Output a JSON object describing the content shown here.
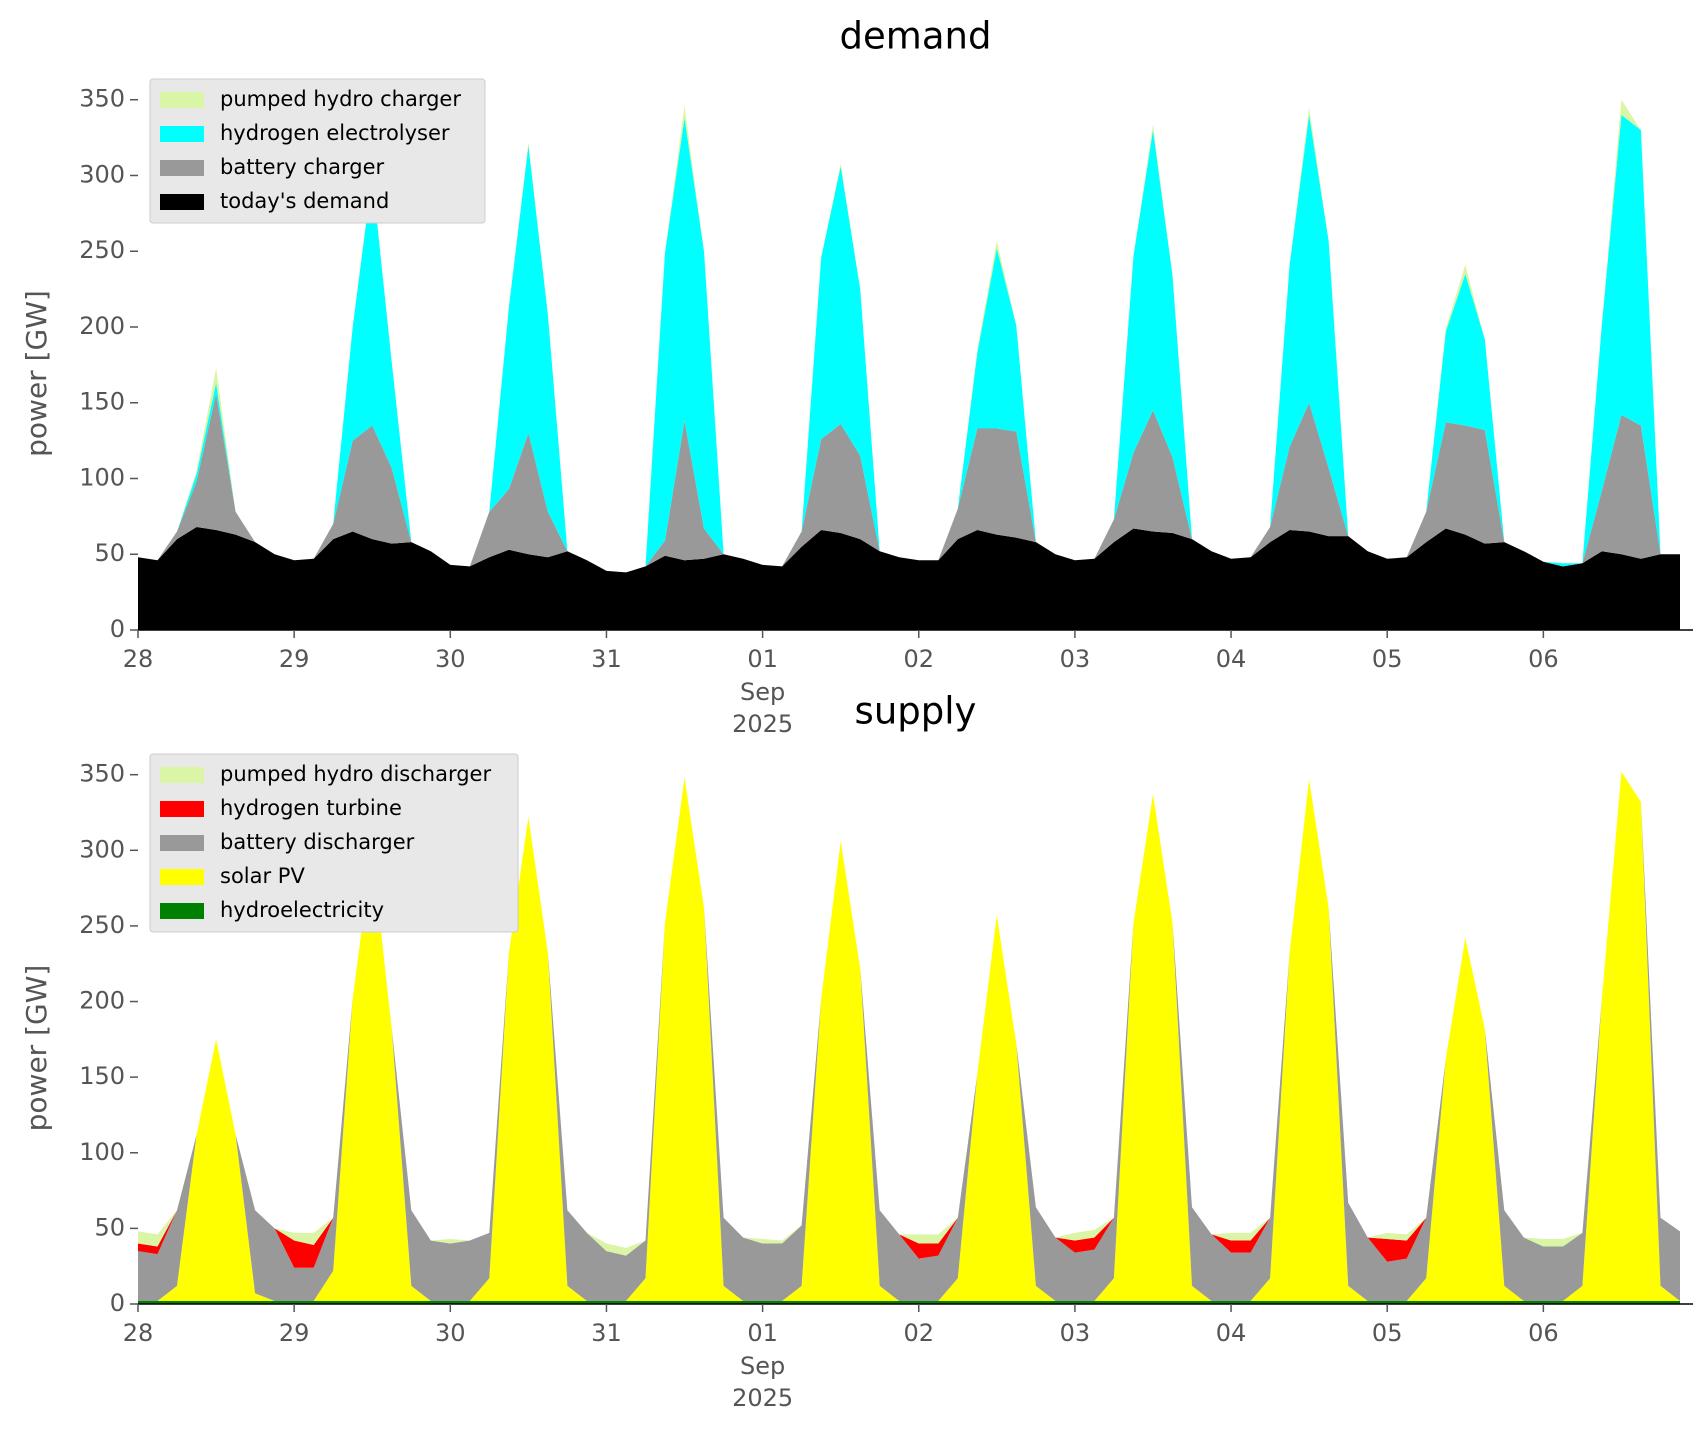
{
  "chart_data": [
    {
      "type": "area",
      "title": "demand",
      "ylabel": "power [GW]",
      "stacked": true,
      "legend": "upper left",
      "grid": false,
      "x": [
        "2025-08-28 00:00",
        "2025-08-28 03:00",
        "2025-08-28 06:00",
        "2025-08-28 09:00",
        "2025-08-28 12:00",
        "2025-08-28 15:00",
        "2025-08-28 18:00",
        "2025-08-28 21:00",
        "2025-08-29 00:00",
        "2025-08-29 03:00",
        "2025-08-29 06:00",
        "2025-08-29 09:00",
        "2025-08-29 12:00",
        "2025-08-29 15:00",
        "2025-08-29 18:00",
        "2025-08-29 21:00",
        "2025-08-30 00:00",
        "2025-08-30 03:00",
        "2025-08-30 06:00",
        "2025-08-30 09:00",
        "2025-08-30 12:00",
        "2025-08-30 15:00",
        "2025-08-30 18:00",
        "2025-08-30 21:00",
        "2025-08-31 00:00",
        "2025-08-31 03:00",
        "2025-08-31 06:00",
        "2025-08-31 09:00",
        "2025-08-31 12:00",
        "2025-08-31 15:00",
        "2025-08-31 18:00",
        "2025-08-31 21:00",
        "2025-09-01 00:00",
        "2025-09-01 03:00",
        "2025-09-01 06:00",
        "2025-09-01 09:00",
        "2025-09-01 12:00",
        "2025-09-01 15:00",
        "2025-09-01 18:00",
        "2025-09-01 21:00",
        "2025-09-02 00:00",
        "2025-09-02 03:00",
        "2025-09-02 06:00",
        "2025-09-02 09:00",
        "2025-09-02 12:00",
        "2025-09-02 15:00",
        "2025-09-02 18:00",
        "2025-09-02 21:00",
        "2025-09-03 00:00",
        "2025-09-03 03:00",
        "2025-09-03 06:00",
        "2025-09-03 09:00",
        "2025-09-03 12:00",
        "2025-09-03 15:00",
        "2025-09-03 18:00",
        "2025-09-03 21:00",
        "2025-09-04 00:00",
        "2025-09-04 03:00",
        "2025-09-04 06:00",
        "2025-09-04 09:00",
        "2025-09-04 12:00",
        "2025-09-04 15:00",
        "2025-09-04 18:00",
        "2025-09-04 21:00",
        "2025-09-05 00:00",
        "2025-09-05 03:00",
        "2025-09-05 06:00",
        "2025-09-05 09:00",
        "2025-09-05 12:00",
        "2025-09-05 15:00",
        "2025-09-05 18:00",
        "2025-09-05 21:00",
        "2025-09-06 00:00",
        "2025-09-06 03:00",
        "2025-09-06 06:00",
        "2025-09-06 09:00",
        "2025-09-06 12:00",
        "2025-09-06 15:00",
        "2025-09-06 18:00",
        "2025-09-06 21:00"
      ],
      "xlim": [
        "2025-08-28 00:00",
        "2025-09-06 23:00"
      ],
      "xticks": [
        {
          "value": "2025-08-28 00:00",
          "label": "28"
        },
        {
          "value": "2025-08-29 00:00",
          "label": "29"
        },
        {
          "value": "2025-08-30 00:00",
          "label": "30"
        },
        {
          "value": "2025-08-31 00:00",
          "label": "31"
        },
        {
          "value": "2025-09-01 00:00",
          "label": "01"
        },
        {
          "value": "2025-09-02 00:00",
          "label": "02"
        },
        {
          "value": "2025-09-03 00:00",
          "label": "03"
        },
        {
          "value": "2025-09-04 00:00",
          "label": "04"
        },
        {
          "value": "2025-09-05 00:00",
          "label": "05"
        },
        {
          "value": "2025-09-06 00:00",
          "label": "06"
        }
      ],
      "x_offset_label": [
        "Sep",
        "2025"
      ],
      "ylim": [
        0,
        365
      ],
      "yticks": [
        0,
        50,
        100,
        150,
        200,
        250,
        300,
        350
      ],
      "series": [
        {
          "name": "today's demand",
          "color": "#000000",
          "values": [
            48,
            46,
            60,
            68,
            66,
            63,
            58,
            50,
            46,
            47,
            60,
            65,
            60,
            57,
            58,
            52,
            43,
            42,
            48,
            53,
            50,
            48,
            52,
            46,
            39,
            38,
            42,
            49,
            46,
            47,
            50,
            47,
            43,
            42,
            55,
            66,
            64,
            60,
            52,
            48,
            46,
            46,
            60,
            66,
            63,
            61,
            58,
            50,
            46,
            47,
            58,
            67,
            65,
            64,
            60,
            52,
            47,
            48,
            58,
            66,
            65,
            62,
            62,
            52,
            47,
            48,
            58,
            67,
            63,
            57,
            58,
            52,
            45,
            42,
            44,
            52,
            50,
            47,
            50,
            50
          ]
        },
        {
          "name": "battery charger",
          "color": "#999999",
          "values": [
            0,
            0,
            5,
            30,
            90,
            15,
            0,
            0,
            0,
            0,
            10,
            60,
            75,
            50,
            0,
            0,
            0,
            0,
            30,
            40,
            80,
            30,
            0,
            0,
            0,
            0,
            0,
            10,
            92,
            20,
            0,
            0,
            0,
            0,
            10,
            60,
            72,
            55,
            0,
            0,
            0,
            0,
            20,
            67,
            70,
            70,
            0,
            0,
            0,
            0,
            15,
            50,
            80,
            50,
            0,
            0,
            0,
            0,
            10,
            55,
            85,
            45,
            0,
            0,
            0,
            0,
            20,
            70,
            72,
            75,
            0,
            0,
            0,
            0,
            0,
            40,
            92,
            88,
            0,
            0
          ]
        },
        {
          "name": "hydrogen electrolyser",
          "color": "#00ffff",
          "values": [
            0,
            0,
            0,
            5,
            7,
            0,
            0,
            0,
            0,
            0,
            0,
            75,
            165,
            70,
            0,
            0,
            0,
            0,
            0,
            120,
            190,
            130,
            0,
            0,
            0,
            0,
            0,
            190,
            200,
            183,
            0,
            0,
            0,
            0,
            0,
            120,
            170,
            110,
            0,
            0,
            0,
            0,
            0,
            50,
            119,
            70,
            0,
            0,
            0,
            0,
            0,
            130,
            185,
            120,
            0,
            0,
            0,
            0,
            0,
            120,
            190,
            150,
            0,
            0,
            0,
            0,
            0,
            60,
            100,
            60,
            0,
            0,
            0,
            2,
            0,
            110,
            198,
            195,
            0,
            0
          ]
        },
        {
          "name": "pumped hydro charger",
          "color": "#d9f5a5",
          "values": [
            0,
            0,
            0,
            2,
            10,
            0,
            0,
            0,
            0,
            0,
            0,
            0,
            2,
            0,
            0,
            0,
            0,
            0,
            0,
            0,
            2,
            0,
            0,
            0,
            0,
            0,
            0,
            0,
            8,
            0,
            0,
            0,
            0,
            0,
            0,
            0,
            2,
            0,
            0,
            0,
            0,
            0,
            0,
            2,
            5,
            0,
            0,
            0,
            0,
            0,
            0,
            0,
            4,
            0,
            0,
            0,
            0,
            0,
            0,
            0,
            5,
            0,
            0,
            0,
            0,
            0,
            0,
            2,
            6,
            0,
            0,
            0,
            0,
            0,
            0,
            0,
            10,
            0,
            0,
            0
          ]
        }
      ]
    },
    {
      "type": "area",
      "title": "supply",
      "ylabel": "power [GW]",
      "stacked": true,
      "legend": "upper left",
      "grid": false,
      "x": [
        "2025-08-28 00:00",
        "2025-08-28 03:00",
        "2025-08-28 06:00",
        "2025-08-28 09:00",
        "2025-08-28 12:00",
        "2025-08-28 15:00",
        "2025-08-28 18:00",
        "2025-08-28 21:00",
        "2025-08-29 00:00",
        "2025-08-29 03:00",
        "2025-08-29 06:00",
        "2025-08-29 09:00",
        "2025-08-29 12:00",
        "2025-08-29 15:00",
        "2025-08-29 18:00",
        "2025-08-29 21:00",
        "2025-08-30 00:00",
        "2025-08-30 03:00",
        "2025-08-30 06:00",
        "2025-08-30 09:00",
        "2025-08-30 12:00",
        "2025-08-30 15:00",
        "2025-08-30 18:00",
        "2025-08-30 21:00",
        "2025-08-31 00:00",
        "2025-08-31 03:00",
        "2025-08-31 06:00",
        "2025-08-31 09:00",
        "2025-08-31 12:00",
        "2025-08-31 15:00",
        "2025-08-31 18:00",
        "2025-08-31 21:00",
        "2025-09-01 00:00",
        "2025-09-01 03:00",
        "2025-09-01 06:00",
        "2025-09-01 09:00",
        "2025-09-01 12:00",
        "2025-09-01 15:00",
        "2025-09-01 18:00",
        "2025-09-01 21:00",
        "2025-09-02 00:00",
        "2025-09-02 03:00",
        "2025-09-02 06:00",
        "2025-09-02 09:00",
        "2025-09-02 12:00",
        "2025-09-02 15:00",
        "2025-09-02 18:00",
        "2025-09-02 21:00",
        "2025-09-03 00:00",
        "2025-09-03 03:00",
        "2025-09-03 06:00",
        "2025-09-03 09:00",
        "2025-09-03 12:00",
        "2025-09-03 15:00",
        "2025-09-03 18:00",
        "2025-09-03 21:00",
        "2025-09-04 00:00",
        "2025-09-04 03:00",
        "2025-09-04 06:00",
        "2025-09-04 09:00",
        "2025-09-04 12:00",
        "2025-09-04 15:00",
        "2025-09-04 18:00",
        "2025-09-04 21:00",
        "2025-09-05 00:00",
        "2025-09-05 03:00",
        "2025-09-05 06:00",
        "2025-09-05 09:00",
        "2025-09-05 12:00",
        "2025-09-05 15:00",
        "2025-09-05 18:00",
        "2025-09-05 21:00",
        "2025-09-06 00:00",
        "2025-09-06 03:00",
        "2025-09-06 06:00",
        "2025-09-06 09:00",
        "2025-09-06 12:00",
        "2025-09-06 15:00",
        "2025-09-06 18:00",
        "2025-09-06 21:00"
      ],
      "xlim": [
        "2025-08-28 00:00",
        "2025-09-06 23:00"
      ],
      "xticks": [
        {
          "value": "2025-08-28 00:00",
          "label": "28"
        },
        {
          "value": "2025-08-29 00:00",
          "label": "29"
        },
        {
          "value": "2025-08-30 00:00",
          "label": "30"
        },
        {
          "value": "2025-08-31 00:00",
          "label": "31"
        },
        {
          "value": "2025-09-01 00:00",
          "label": "01"
        },
        {
          "value": "2025-09-02 00:00",
          "label": "02"
        },
        {
          "value": "2025-09-03 00:00",
          "label": "03"
        },
        {
          "value": "2025-09-04 00:00",
          "label": "04"
        },
        {
          "value": "2025-09-05 00:00",
          "label": "05"
        },
        {
          "value": "2025-09-06 00:00",
          "label": "06"
        }
      ],
      "x_offset_label": [
        "Sep",
        "2025"
      ],
      "ylim": [
        0,
        365
      ],
      "yticks": [
        0,
        50,
        100,
        150,
        200,
        250,
        300,
        350
      ],
      "series": [
        {
          "name": "hydroelectricity",
          "color": "#008000",
          "values": [
            2,
            2,
            2,
            2,
            2,
            2,
            2,
            2,
            2,
            2,
            2,
            2,
            2,
            2,
            2,
            2,
            2,
            2,
            2,
            2,
            2,
            2,
            2,
            2,
            2,
            2,
            2,
            2,
            2,
            2,
            2,
            2,
            2,
            2,
            2,
            2,
            2,
            2,
            2,
            2,
            2,
            2,
            2,
            2,
            2,
            2,
            2,
            2,
            2,
            2,
            2,
            2,
            2,
            2,
            2,
            2,
            2,
            2,
            2,
            2,
            2,
            2,
            2,
            2,
            2,
            2,
            2,
            2,
            2,
            2,
            2,
            2,
            2,
            2,
            2,
            2,
            2,
            2,
            2,
            2
          ]
        },
        {
          "name": "solar PV",
          "color": "#ffff00",
          "values": [
            0,
            0,
            10,
            110,
            173,
            110,
            5,
            0,
            0,
            0,
            20,
            200,
            298,
            180,
            10,
            0,
            0,
            0,
            15,
            230,
            320,
            230,
            10,
            0,
            0,
            0,
            15,
            250,
            346,
            260,
            10,
            0,
            0,
            0,
            10,
            200,
            304,
            220,
            10,
            0,
            0,
            0,
            15,
            150,
            255,
            170,
            10,
            0,
            0,
            0,
            15,
            250,
            335,
            250,
            10,
            0,
            0,
            0,
            15,
            230,
            345,
            260,
            10,
            0,
            0,
            0,
            15,
            160,
            240,
            180,
            10,
            0,
            0,
            0,
            10,
            200,
            350,
            330,
            10,
            0
          ]
        },
        {
          "name": "battery discharger",
          "color": "#999999",
          "values": [
            33,
            31,
            50,
            0,
            0,
            0,
            55,
            48,
            22,
            22,
            35,
            0,
            0,
            0,
            50,
            40,
            38,
            40,
            30,
            0,
            0,
            0,
            50,
            45,
            33,
            30,
            25,
            0,
            0,
            0,
            45,
            42,
            38,
            38,
            40,
            0,
            0,
            0,
            50,
            44,
            28,
            30,
            40,
            0,
            0,
            0,
            52,
            42,
            32,
            34,
            40,
            0,
            0,
            0,
            52,
            44,
            32,
            32,
            40,
            0,
            0,
            0,
            55,
            42,
            26,
            28,
            40,
            0,
            0,
            0,
            50,
            42,
            36,
            36,
            35,
            0,
            0,
            0,
            45,
            46
          ]
        },
        {
          "name": "hydrogen turbine",
          "color": "#ff0000",
          "values": [
            5,
            5,
            0,
            0,
            0,
            0,
            0,
            0,
            18,
            15,
            0,
            0,
            0,
            0,
            0,
            0,
            0,
            0,
            0,
            0,
            0,
            0,
            0,
            0,
            0,
            0,
            0,
            0,
            0,
            0,
            0,
            0,
            0,
            0,
            0,
            0,
            0,
            0,
            0,
            0,
            10,
            8,
            0,
            0,
            0,
            0,
            0,
            0,
            8,
            8,
            0,
            0,
            0,
            0,
            0,
            0,
            8,
            8,
            0,
            0,
            0,
            0,
            0,
            0,
            15,
            12,
            0,
            0,
            0,
            0,
            0,
            0,
            0,
            0,
            0,
            0,
            0,
            0,
            0,
            0
          ]
        },
        {
          "name": "pumped hydro discharger",
          "color": "#d9f5a5",
          "values": [
            8,
            8,
            0,
            0,
            0,
            0,
            0,
            0,
            5,
            8,
            0,
            0,
            0,
            0,
            0,
            0,
            3,
            0,
            0,
            0,
            0,
            0,
            0,
            0,
            5,
            5,
            0,
            0,
            0,
            0,
            0,
            0,
            3,
            2,
            0,
            0,
            0,
            0,
            0,
            0,
            6,
            6,
            0,
            0,
            0,
            0,
            0,
            0,
            5,
            5,
            0,
            0,
            0,
            0,
            0,
            0,
            5,
            5,
            0,
            0,
            0,
            0,
            0,
            0,
            4,
            4,
            0,
            0,
            0,
            0,
            0,
            0,
            5,
            5,
            0,
            0,
            0,
            0,
            0,
            0
          ]
        }
      ]
    }
  ]
}
